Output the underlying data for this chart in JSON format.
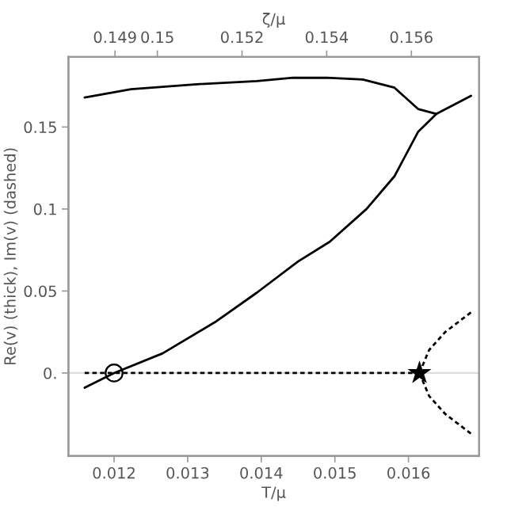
{
  "chart_data": {
    "type": "line",
    "xlabel": "T/μ",
    "ylabel": "Re(v) (thick), Im(v) (dashed)",
    "x2label": "ζ/μ",
    "xlim": [
      0.01138,
      0.01696
    ],
    "ylim": [
      -0.0505,
      0.1927
    ],
    "xticks": [
      0.012,
      0.013,
      0.014,
      0.015,
      0.016
    ],
    "yticks": [
      {
        "value": 0,
        "label": "0."
      },
      0.05,
      0.1,
      0.15
    ],
    "x2lim": [
      0.1479,
      0.1576
    ],
    "x2ticks": [
      0.149,
      0.15,
      0.152,
      0.154,
      0.156
    ],
    "grid": false,
    "ref_lines": [
      {
        "axis": "y",
        "value": 0,
        "color": "#dddddd"
      }
    ],
    "series": [
      {
        "color": "#000000",
        "line_style": "solid",
        "x": [
          0.0116,
          0.01223,
          0.01309,
          0.01394,
          0.01443,
          0.01489,
          0.01538,
          0.01581,
          0.01613,
          0.01638,
          0.01685
        ],
        "values": [
          0.168,
          0.173,
          0.176,
          0.178,
          0.18,
          0.18,
          0.179,
          0.174,
          0.161,
          0.158,
          0.169
        ]
      },
      {
        "color": "#000000",
        "line_style": "solid",
        "x": [
          0.0116,
          0.012,
          0.01266,
          0.01337,
          0.01394,
          0.0145,
          0.01493,
          0.01543,
          0.01581,
          0.01613,
          0.01638
        ],
        "values": [
          -0.009,
          0,
          0.012,
          0.031,
          0.049,
          0.068,
          0.08,
          0.1,
          0.12,
          0.147,
          0.158
        ]
      },
      {
        "color": "#000000",
        "line_style": "dashed",
        "x": [
          0.0116,
          0.01615
        ],
        "values": [
          0,
          0
        ]
      },
      {
        "color": "#000000",
        "line_style": "dashed",
        "x": [
          0.01615,
          0.01628,
          0.0165,
          0.01685
        ],
        "values": [
          0,
          0.014,
          0.025,
          0.037
        ]
      },
      {
        "color": "#000000",
        "line_style": "dashed",
        "x": [
          0.01615,
          0.01628,
          0.0165,
          0.01685
        ],
        "values": [
          0,
          -0.014,
          -0.025,
          -0.037
        ]
      },
      {
        "type": "scatter",
        "marker": "circle",
        "color": "#000000",
        "x": [
          0.012
        ],
        "values": [
          0
        ]
      },
      {
        "type": "scatter",
        "marker": "star",
        "color": "#000000",
        "x": [
          0.01615
        ],
        "values": [
          0
        ]
      }
    ]
  }
}
